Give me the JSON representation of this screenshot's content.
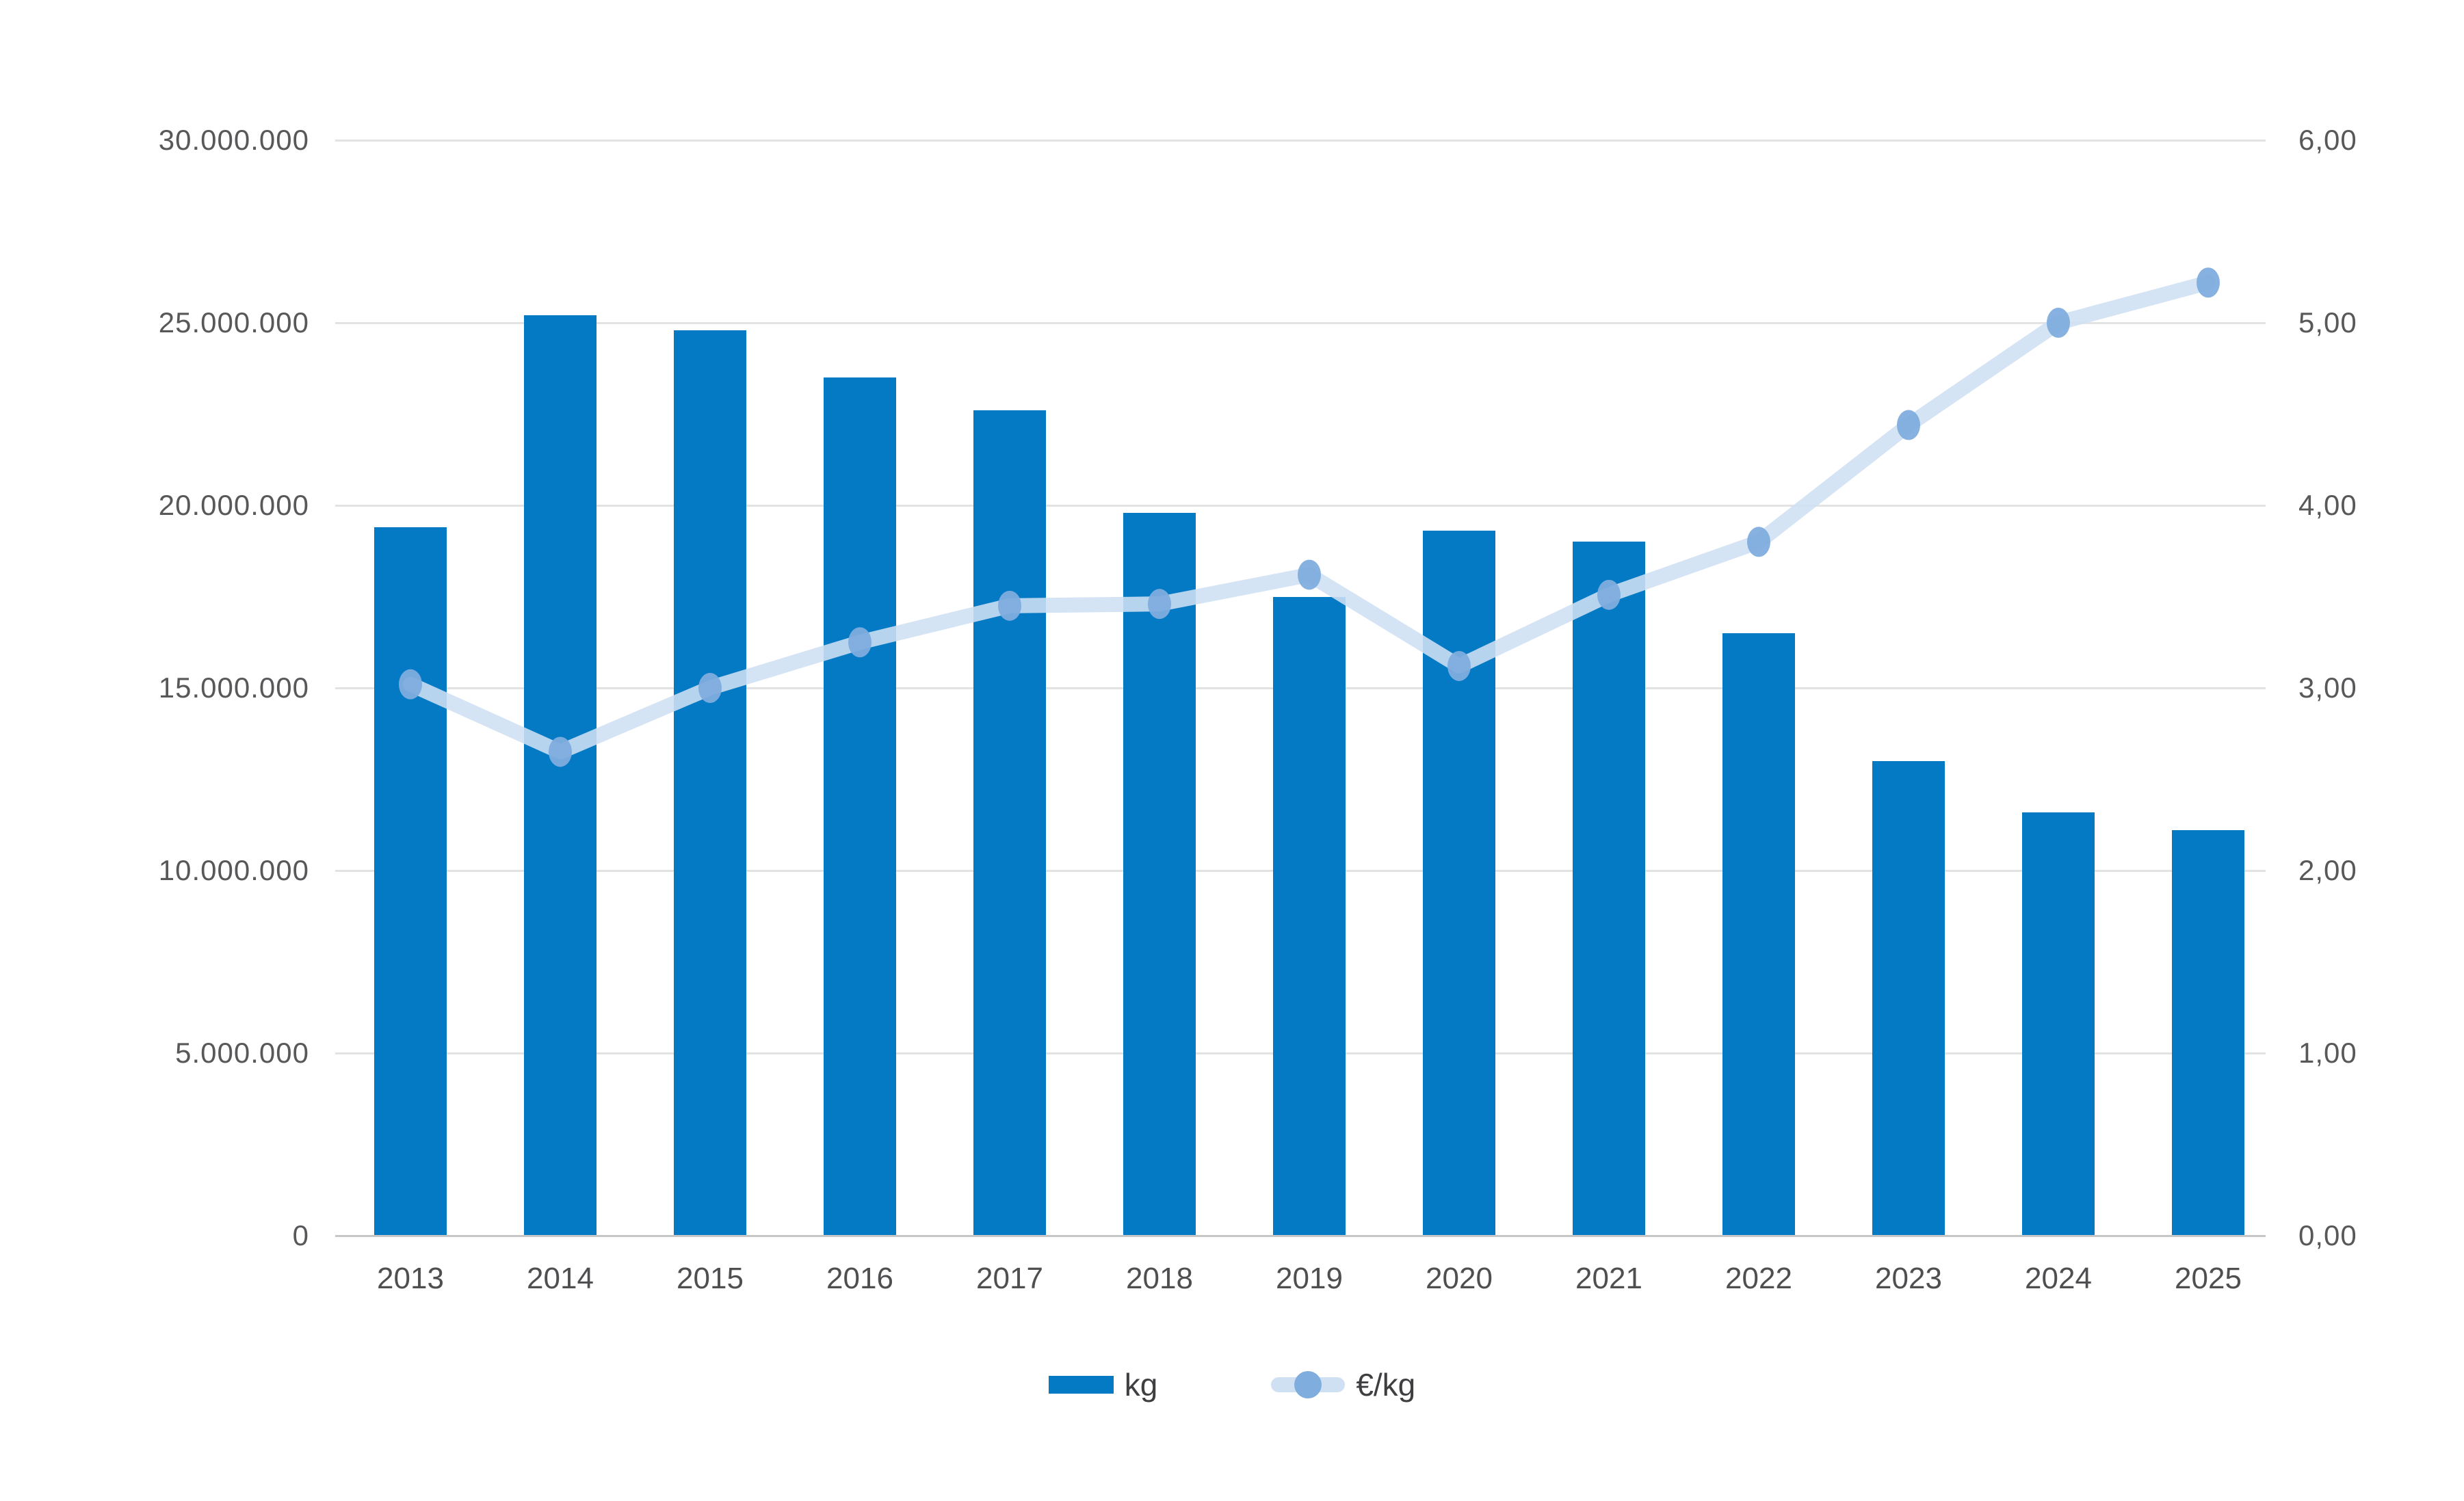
{
  "chart_data": {
    "type": "bar",
    "combo": "bar+line",
    "categories": [
      "2013",
      "2014",
      "2015",
      "2016",
      "2017",
      "2018",
      "2019",
      "2020",
      "2021",
      "2022",
      "2023",
      "2024",
      "2025"
    ],
    "series": [
      {
        "name": "kg",
        "type": "bar",
        "axis": "left",
        "values": [
          19400000,
          25200000,
          24800000,
          23500000,
          22600000,
          19800000,
          17500000,
          19300000,
          19000000,
          16500000,
          13000000,
          11600000,
          11100000
        ]
      },
      {
        "name": "€/kg",
        "type": "line",
        "axis": "right",
        "values": [
          3.02,
          2.65,
          3.0,
          3.25,
          3.45,
          3.46,
          3.62,
          3.12,
          3.51,
          3.8,
          4.44,
          5.0,
          5.22
        ]
      }
    ],
    "left_axis": {
      "min": 0,
      "max": 30000000,
      "tick_labels": [
        "30.000.000",
        "25.000.000",
        "20.000.000",
        "15.000.000",
        "10.000.000",
        "5.000.000",
        "0"
      ]
    },
    "right_axis": {
      "min": 0,
      "max": 6,
      "tick_labels": [
        "6,00",
        "5,00",
        "4,00",
        "3,00",
        "2,00",
        "1,00",
        "0,00"
      ]
    },
    "title": "",
    "xlabel": "",
    "ylabel": "",
    "grid": "horizontal-only",
    "legend_position": "bottom-center",
    "legend": [
      "kg",
      "€/kg"
    ],
    "colors": {
      "bar": "#047AC4",
      "line": "#CFE0F3",
      "marker": "#7FADDE",
      "grid": "#E3E3E3",
      "axis_line": "#C6C6C6",
      "text": "#58585A"
    }
  }
}
